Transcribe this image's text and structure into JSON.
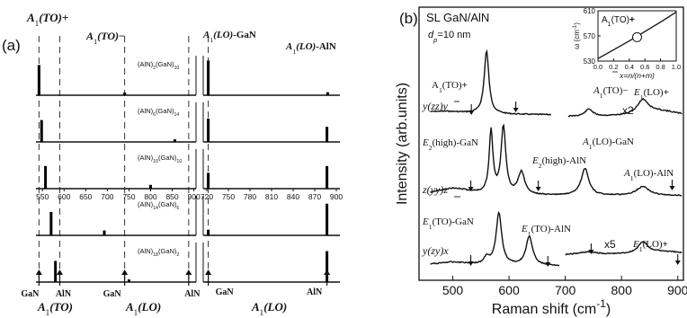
{
  "chart_data": [
    {
      "type": "bar",
      "panel_label": "(a)",
      "rows": [
        {
          "label_main": "(AlN)",
          "label_sub_1": "2",
          "label_mid": "(GaN)",
          "label_sub_2": "10",
          "left_bars": [
            {
              "x": 542,
              "h": 0.8
            },
            {
              "x": 740,
              "h": 0.07
            }
          ],
          "right_bars": [
            {
              "x": 722,
              "h": 0.92
            },
            {
              "x": 888,
              "h": 0.08
            }
          ]
        },
        {
          "label_main": "(AlN)",
          "label_sub_1": "6",
          "label_mid": "(GaN)",
          "label_sub_2": "14",
          "left_bars": [
            {
              "x": 548,
              "h": 0.58
            },
            {
              "x": 856,
              "h": 0.07
            }
          ],
          "right_bars": [
            {
              "x": 722,
              "h": 0.62
            },
            {
              "x": 887,
              "h": 0.4
            }
          ]
        },
        {
          "label_main": "(AlN)",
          "label_sub_1": "10",
          "label_mid": "(GaN)",
          "label_sub_2": "10",
          "left_bars": [
            {
              "x": 557,
              "h": 0.6
            },
            {
              "x": 800,
              "h": 0.1
            }
          ],
          "right_bars": [
            {
              "x": 722,
              "h": 0.42
            },
            {
              "x": 887,
              "h": 0.6
            }
          ]
        },
        {
          "label_main": "(AlN)",
          "label_sub_1": "14",
          "label_mid": "(GaN)",
          "label_sub_2": "6",
          "left_bars": [
            {
              "x": 570,
              "h": 0.62
            },
            {
              "x": 693,
              "h": 0.13
            }
          ],
          "right_bars": [
            {
              "x": 722,
              "h": 0.15
            },
            {
              "x": 887,
              "h": 0.84
            }
          ]
        },
        {
          "label_main": "(AlN)",
          "label_sub_1": "18",
          "label_mid": "(GaN)",
          "label_sub_2": "2",
          "left_bars": [
            {
              "x": 580,
              "h": 0.56
            },
            {
              "x": 750,
              "h": 0.07
            }
          ],
          "right_bars": [
            {
              "x": 722,
              "h": 0.02
            },
            {
              "x": 887,
              "h": 0.82
            }
          ]
        }
      ],
      "left_ticks": [
        550,
        600,
        650,
        700,
        750,
        800,
        850,
        900
      ],
      "right_ticks": [
        720,
        750,
        780,
        810,
        840,
        870,
        900
      ],
      "left_xlim": [
        535,
        905
      ],
      "right_xlim": [
        715,
        905
      ],
      "dashed_lines": [
        542,
        590,
        740,
        888
      ],
      "top_labels": {
        "a1_to_plus": "A",
        "a1_to_minus": "A",
        "a1_lo_gan": "A",
        "a1_lo_aln": "A",
        "to_text": "(TO)",
        "lo_text": "(LO)",
        "gan_suffix": "-GaN",
        "aln_suffix": "-AlN",
        "sub1": "1"
      },
      "bottom_labels": {
        "gan": "GaN",
        "aln": "AlN",
        "to": "A",
        "to_rest": "(TO)",
        "lo": "A",
        "lo_rest": "(LO)",
        "sub1": "1",
        "gan2": "GaN",
        "aln2": "AlN",
        "gan3": "GaN",
        "aln3": "AlN"
      }
    },
    {
      "type": "line",
      "panel_label": "(b)",
      "title": "SL GaN/AlN",
      "subtitle_d": "d",
      "subtitle_sub": "p",
      "subtitle_val": "=10 nm",
      "xlabel": "Raman shift (cm",
      "xlabel_sup": "-1",
      "xlabel_end": ")",
      "ylabel": "Intensity (arb.units)",
      "xlim": [
        440,
        910
      ],
      "xticks": [
        500,
        600,
        700,
        800,
        900
      ],
      "spectra_labels": {
        "top_config": "y(zz)y",
        "mid_config": "z(yy)z",
        "bot_config": "y(zy)x",
        "top_peak": "A",
        "top_peak_rest": "(TO)",
        "x2": "x2",
        "top_a1to": "A",
        "top_a1to_rest": "(TO)",
        "top_e1lo": "E",
        "top_e1lo_rest": "(LO)",
        "mid_e2_gan": "E",
        "mid_e2_gan_rest": "(high)-GaN",
        "mid_e2_aln": "E",
        "mid_e2_aln_rest": "(high)-AlN",
        "mid_a1lo_gan": "A",
        "mid_a1lo_gan_rest": "(LO)-GaN",
        "mid_a1lo_aln": "A",
        "mid_a1lo_aln_rest": "(LO)-AlN",
        "bot_e1to_gan": "E",
        "bot_e1to_gan_rest": "(TO)-GaN",
        "bot_e1to_aln": "E",
        "bot_e1to_aln_rest": "(TO)-AlN",
        "x5": "x5",
        "bot_e1lo": "E",
        "bot_e1lo_rest": "(LO)",
        "sub1": "1",
        "sub2": "2"
      },
      "inset": {
        "title": "A",
        "title_rest": "(TO)",
        "sub1": "1",
        "ylabel": "ω (cm",
        "ylabel_sup": "-1",
        "ylabel_end": ")",
        "xlabel": "x=n/(n+m)",
        "yticks": [
          530,
          570,
          610
        ],
        "xticks": [
          "0.0",
          "0.2",
          "0.4",
          "0.6",
          "0.8",
          "1.0"
        ],
        "ylim": [
          530,
          610
        ],
        "xlim": [
          0,
          1
        ],
        "curve": [
          [
            0,
            534
          ],
          [
            0.2,
            548
          ],
          [
            0.4,
            562
          ],
          [
            0.6,
            577
          ],
          [
            0.8,
            592
          ],
          [
            1.0,
            608
          ]
        ],
        "marker": {
          "x": 0.5,
          "y": 568
        }
      }
    }
  ]
}
